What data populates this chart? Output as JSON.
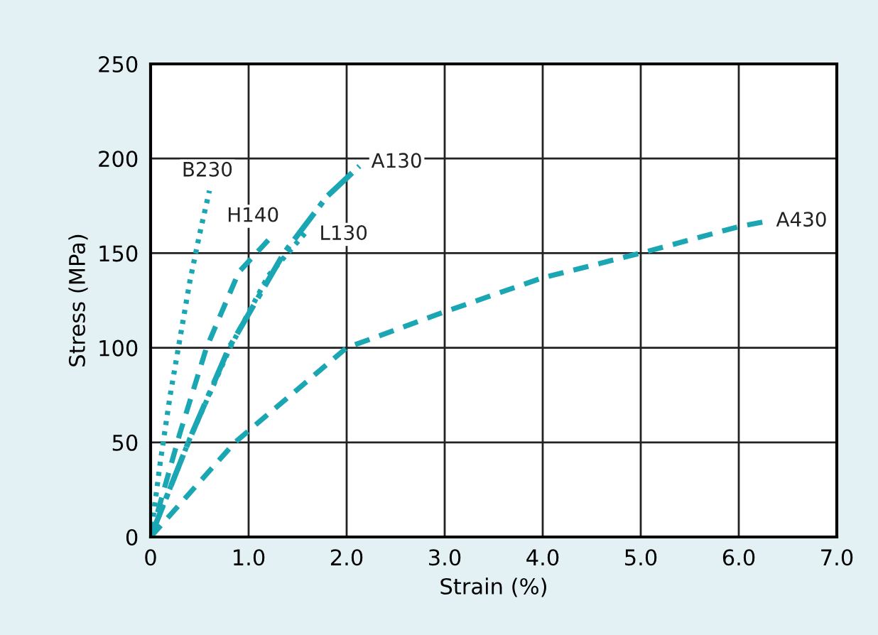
{
  "chart_data": {
    "type": "line",
    "xlabel": "Strain (%)",
    "ylabel": "Stress (MPa)",
    "xlim": [
      0,
      7
    ],
    "ylim": [
      0,
      250
    ],
    "xticks": [
      0,
      {
        "value": 1,
        "label": "1.0"
      },
      {
        "value": 2,
        "label": "2.0"
      },
      {
        "value": 3,
        "label": "3.0"
      },
      {
        "value": 4,
        "label": "4.0"
      },
      {
        "value": 5,
        "label": "5.0"
      },
      {
        "value": 6,
        "label": "6.0"
      },
      {
        "value": 7,
        "label": "7.0"
      }
    ],
    "yticks": [
      0,
      50,
      100,
      150,
      200,
      250
    ],
    "grid": true,
    "legend": false,
    "series": [
      {
        "name": "B230",
        "color": "#1aa6b2",
        "line_style": "dotted",
        "x": [
          0,
          0.1,
          0.2,
          0.3,
          0.4,
          0.5,
          0.6
        ],
        "values": [
          0,
          40,
          75,
          105,
          135,
          160,
          183
        ]
      },
      {
        "name": "H140",
        "color": "#1aa6b2",
        "line_style": "dashed",
        "x": [
          0,
          0.3,
          0.57,
          0.9,
          1.22
        ],
        "values": [
          0,
          55,
          100,
          140,
          158
        ]
      },
      {
        "name": "L130",
        "color": "#1aa6b2",
        "line_style": "dotted",
        "x": [
          0,
          0.4,
          0.81,
          1.2,
          1.6
        ],
        "values": [
          0,
          52,
          100,
          138,
          162
        ]
      },
      {
        "name": "A130",
        "color": "#1aa6b2",
        "line_style": "dashdot",
        "x": [
          0,
          0.4,
          0.8,
          1.36,
          1.8,
          2.13
        ],
        "values": [
          0,
          52,
          100,
          150,
          180,
          196
        ]
      },
      {
        "name": "A430",
        "color": "#1aa6b2",
        "line_style": "dashed",
        "x": [
          0,
          0.86,
          2.0,
          3.0,
          4.0,
          5.0,
          6.0,
          6.3
        ],
        "values": [
          0,
          50,
          100,
          119,
          137,
          150,
          164,
          167
        ]
      }
    ]
  }
}
